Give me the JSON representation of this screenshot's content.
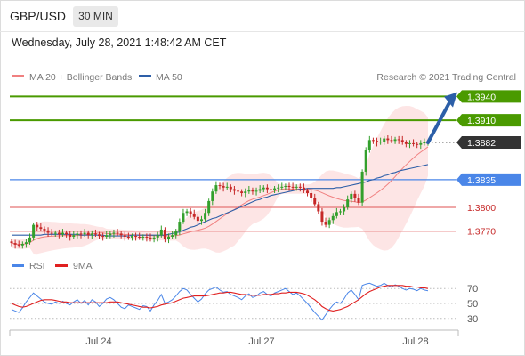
{
  "header": {
    "symbol": "GBP/USD",
    "timeframe": "30 MIN",
    "datetime": "Wednesday, July 28, 2021 1:48:42 AM CET"
  },
  "legend": {
    "ma20_label": "MA 20 + Bollinger Bands",
    "ma50_label": "MA 50",
    "copyright": "Research © 2021 Trading Central",
    "rsi_label": "RSI",
    "rsi_ma_label": "9MA"
  },
  "colors": {
    "up_candle": "#33a02c",
    "down_candle": "#c62828",
    "ma20": "#f08080",
    "bollinger_fill": "#fde0e0",
    "ma50": "#2e5fa8",
    "resistance": "#4a9a00",
    "pivot": "#4a86e8",
    "support": "#e57373",
    "last_price_bg": "#333333",
    "arrow": "#2c5fa8",
    "rsi": "#4a86e8",
    "rsi_ma": "#e02020"
  },
  "chart_data": [
    {
      "type": "candlestick",
      "title": "",
      "x_tick_labels": [
        "Jul 24",
        "Jul 27",
        "Jul 28"
      ],
      "ylim": [
        1.3745,
        1.3955
      ],
      "levels": [
        {
          "label": "1.3940",
          "value": 1.394,
          "kind": "resistance"
        },
        {
          "label": "1.3910",
          "value": 1.391,
          "kind": "resistance"
        },
        {
          "label": "1.3882",
          "value": 1.3882,
          "kind": "last"
        },
        {
          "label": "1.3835",
          "value": 1.3835,
          "kind": "pivot"
        },
        {
          "label": "1.3800",
          "value": 1.38,
          "kind": "support"
        },
        {
          "label": "1.3770",
          "value": 1.377,
          "kind": "support"
        }
      ],
      "close_series": [
        1.3755,
        1.3753,
        1.3752,
        1.3754,
        1.3756,
        1.3762,
        1.3778,
        1.3775,
        1.3773,
        1.3771,
        1.3768,
        1.3767,
        1.3768,
        1.3766,
        1.3768,
        1.3766,
        1.3763,
        1.3765,
        1.3767,
        1.3766,
        1.3768,
        1.3765,
        1.3767,
        1.3766,
        1.3764,
        1.3763,
        1.3765,
        1.3767,
        1.3768,
        1.3767,
        1.3765,
        1.3763,
        1.3762,
        1.3764,
        1.3763,
        1.3762,
        1.3763,
        1.3762,
        1.376,
        1.3762,
        1.3765,
        1.3772,
        1.376,
        1.3763,
        1.3765,
        1.377,
        1.3782,
        1.3793,
        1.3795,
        1.3792,
        1.3788,
        1.3783,
        1.3785,
        1.3793,
        1.3808,
        1.382,
        1.3828,
        1.3827,
        1.3825,
        1.3826,
        1.3823,
        1.3821,
        1.382,
        1.3818,
        1.382,
        1.3822,
        1.382,
        1.3821,
        1.3823,
        1.3825,
        1.3823,
        1.3822,
        1.3824,
        1.3825,
        1.3826,
        1.3827,
        1.3826,
        1.3825,
        1.3826,
        1.3825,
        1.3821,
        1.3818,
        1.3812,
        1.3804,
        1.3795,
        1.3782,
        1.3778,
        1.3784,
        1.3789,
        1.3794,
        1.3795,
        1.38,
        1.381,
        1.3817,
        1.3812,
        1.3806,
        1.3845,
        1.3872,
        1.3885,
        1.3884,
        1.3882,
        1.3883,
        1.3887,
        1.3885,
        1.3884,
        1.3886,
        1.3885,
        1.3882,
        1.388,
        1.3881,
        1.388,
        1.3879,
        1.3881,
        1.3882,
        1.3882
      ],
      "ma50_series": [
        1.3765,
        1.3765,
        1.3765,
        1.3765,
        1.3765,
        1.3765,
        1.3765,
        1.3765,
        1.3765,
        1.3766,
        1.3766,
        1.3766,
        1.3766,
        1.3766,
        1.3766,
        1.3766,
        1.3766,
        1.3766,
        1.3766,
        1.3765,
        1.3765,
        1.3765,
        1.3765,
        1.3765,
        1.3765,
        1.3765,
        1.3764,
        1.3764,
        1.3764,
        1.3764,
        1.3764,
        1.3764,
        1.3764,
        1.3765,
        1.3765,
        1.3765,
        1.3765,
        1.3765,
        1.3765,
        1.3765,
        1.3765,
        1.3765,
        1.3765,
        1.3766,
        1.3767,
        1.3768,
        1.3769,
        1.3771,
        1.3773,
        1.3775,
        1.3776,
        1.3778,
        1.378,
        1.3782,
        1.3784,
        1.3786,
        1.3787,
        1.3789,
        1.3791,
        1.3793,
        1.3795,
        1.3797,
        1.3799,
        1.3801,
        1.3803,
        1.3805,
        1.3807,
        1.3809,
        1.381,
        1.3812,
        1.3813,
        1.3815,
        1.3816,
        1.3817,
        1.3818,
        1.3819,
        1.382,
        1.3821,
        1.3822,
        1.3823,
        1.3823,
        1.3824,
        1.3824,
        1.3824,
        1.3824,
        1.3824,
        1.3824,
        1.3824,
        1.3824,
        1.3825,
        1.3825,
        1.3826,
        1.3827,
        1.3828,
        1.3829,
        1.383,
        1.3831,
        1.3832,
        1.3834,
        1.3835,
        1.3837,
        1.3838,
        1.384,
        1.3841,
        1.3843,
        1.3844,
        1.3846,
        1.3847,
        1.3848,
        1.3849,
        1.385,
        1.3851,
        1.3852,
        1.3853,
        1.3854
      ],
      "rsi_yticks": [
        30,
        50,
        70
      ],
      "rsi_series": [
        42,
        40,
        38,
        44,
        52,
        58,
        64,
        60,
        56,
        52,
        50,
        49,
        52,
        50,
        53,
        50,
        48,
        52,
        55,
        50,
        54,
        48,
        55,
        52,
        46,
        50,
        56,
        58,
        55,
        50,
        45,
        43,
        48,
        46,
        44,
        42,
        47,
        46,
        40,
        48,
        54,
        62,
        50,
        52,
        55,
        60,
        66,
        70,
        68,
        62,
        57,
        52,
        56,
        63,
        68,
        70,
        72,
        68,
        65,
        66,
        62,
        60,
        58,
        55,
        60,
        63,
        58,
        60,
        64,
        66,
        62,
        60,
        64,
        66,
        68,
        70,
        66,
        62,
        64,
        60,
        55,
        50,
        44,
        38,
        33,
        28,
        35,
        42,
        48,
        52,
        50,
        56,
        64,
        68,
        62,
        55,
        74,
        76,
        77,
        75,
        73,
        74,
        77,
        74,
        72,
        75,
        73,
        70,
        68,
        70,
        69,
        67,
        70,
        68,
        67
      ],
      "rsi_ma_series": [
        50,
        48,
        46,
        45,
        46,
        48,
        50,
        52,
        54,
        55,
        55,
        55,
        54,
        53,
        52,
        52,
        51,
        51,
        51,
        51,
        51,
        51,
        51,
        51,
        51,
        51,
        51,
        52,
        52,
        52,
        51,
        50,
        49,
        48,
        47,
        46,
        45,
        45,
        44,
        45,
        46,
        48,
        49,
        50,
        51,
        53,
        55,
        57,
        58,
        59,
        60,
        60,
        60,
        60,
        61,
        62,
        63,
        64,
        64,
        65,
        65,
        64,
        63,
        62,
        62,
        61,
        61,
        61,
        61,
        62,
        62,
        62,
        63,
        63,
        64,
        64,
        65,
        65,
        65,
        64,
        63,
        61,
        58,
        55,
        51,
        46,
        43,
        41,
        40,
        41,
        42,
        44,
        46,
        49,
        52,
        55,
        59,
        63,
        66,
        68,
        70,
        72,
        73,
        74,
        74,
        74,
        74,
        74,
        73,
        73,
        72,
        72,
        71,
        71,
        70
      ]
    }
  ]
}
